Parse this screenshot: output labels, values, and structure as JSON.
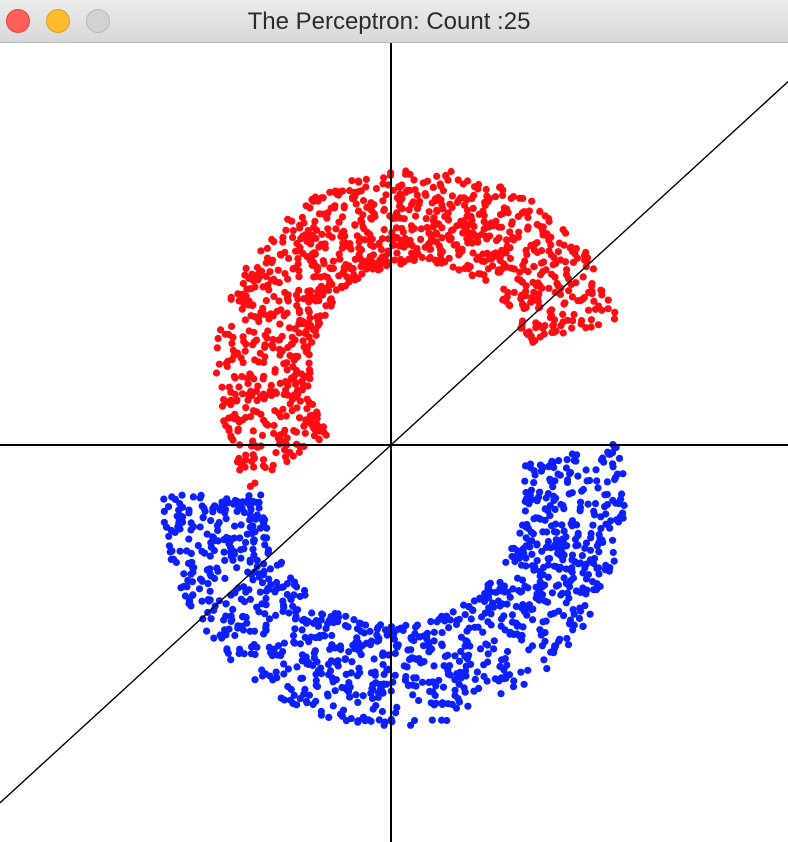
{
  "window": {
    "title": "The Perceptron: Count :25"
  },
  "controls": {
    "close": "close-icon",
    "minimize": "minimize-icon",
    "zoom": "zoom-icon"
  },
  "plot": {
    "colors": {
      "class_a": "#ff0d12",
      "class_b": "#0c1fff",
      "axes": "#000000",
      "boundary": "#000000"
    },
    "decision_boundary": {
      "slope": 0.915,
      "intercept": 0.0
    }
  }
}
